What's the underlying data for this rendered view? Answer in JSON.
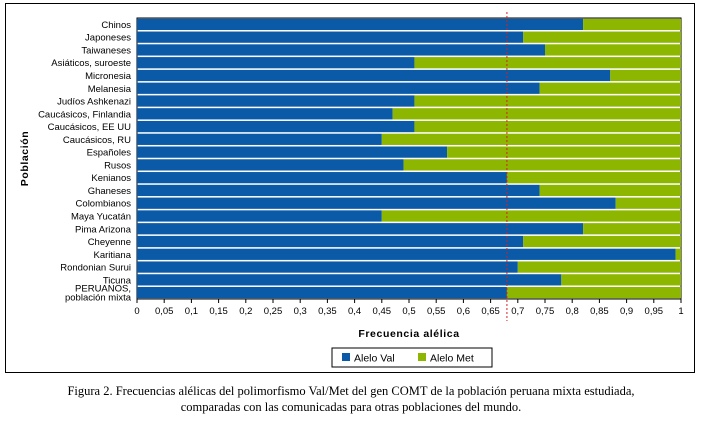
{
  "chart_data": {
    "type": "bar",
    "orientation": "horizontal",
    "stacked": true,
    "categories": [
      "Chinos",
      "Japoneses",
      "Taiwaneses",
      "Asiáticos, suroeste",
      "Micronesia",
      "Melanesia",
      "Judíos Ashkenazi",
      "Caucásicos, Finlandia",
      "Caucásicos, EE UU",
      "Caucásicos, RU",
      "Españoles",
      "Rusos",
      "Kenianos",
      "Ghaneses",
      "Colombianos",
      "Maya Yucatán",
      "Pima Arizona",
      "Cheyenne",
      "Karitiana",
      "Rondonian Surui",
      "Ticuna",
      "PERUANOS, población mixta"
    ],
    "category_label_lines": [
      [
        "Chinos"
      ],
      [
        "Japoneses"
      ],
      [
        "Taiwaneses"
      ],
      [
        "Asiáticos, suroeste"
      ],
      [
        "Micronesia"
      ],
      [
        "Melanesia"
      ],
      [
        "Judíos Ashkenazi"
      ],
      [
        "Caucásicos, Finlandia"
      ],
      [
        "Caucásicos, EE UU"
      ],
      [
        "Caucásicos, RU"
      ],
      [
        "Españoles"
      ],
      [
        "Rusos"
      ],
      [
        "Kenianos"
      ],
      [
        "Ghaneses"
      ],
      [
        "Colombianos"
      ],
      [
        "Maya Yucatán"
      ],
      [
        "Pima Arizona"
      ],
      [
        "Cheyenne"
      ],
      [
        "Karitiana"
      ],
      [
        "Rondonian Surui"
      ],
      [
        "Ticuna"
      ],
      [
        "PERUANOS,",
        "población mixta"
      ]
    ],
    "series": [
      {
        "name": "Alelo Val",
        "color": "#0a5aa8",
        "values": [
          0.82,
          0.71,
          0.75,
          0.51,
          0.87,
          0.74,
          0.51,
          0.47,
          0.51,
          0.45,
          0.57,
          0.49,
          0.68,
          0.74,
          0.88,
          0.45,
          0.82,
          0.71,
          0.99,
          0.7,
          0.78,
          0.68
        ]
      },
      {
        "name": "Alelo Met",
        "color": "#8db600",
        "values": [
          0.18,
          0.29,
          0.25,
          0.49,
          0.13,
          0.26,
          0.49,
          0.53,
          0.49,
          0.55,
          0.43,
          0.51,
          0.32,
          0.26,
          0.12,
          0.55,
          0.18,
          0.29,
          0.01,
          0.3,
          0.22,
          0.32
        ]
      }
    ],
    "xlabel": "Frecuencia alélica",
    "ylabel": "Población",
    "xlim": [
      0,
      1
    ],
    "xticks": [
      "0",
      "0,05",
      "0,1",
      "0,15",
      "0,2",
      "0,25",
      "0,3",
      "0,35",
      "0,4",
      "0,45",
      "0,5",
      "0,55",
      "0,6",
      "0,65",
      "0,7",
      "0,75",
      "0,8",
      "0,85",
      "0,9",
      "0,95",
      "1"
    ],
    "reference_line": {
      "x": 0.68,
      "color": "#d62020",
      "style": "dotted"
    },
    "legend_position": "bottom-center"
  },
  "caption": {
    "line1": "Figura 2. Frecuencias alélicas del polimorfismo Val/Met del gen COMT de la población peruana mixta estudiada,",
    "line2": "comparadas con las comunicadas para otras poblaciones del mundo."
  }
}
